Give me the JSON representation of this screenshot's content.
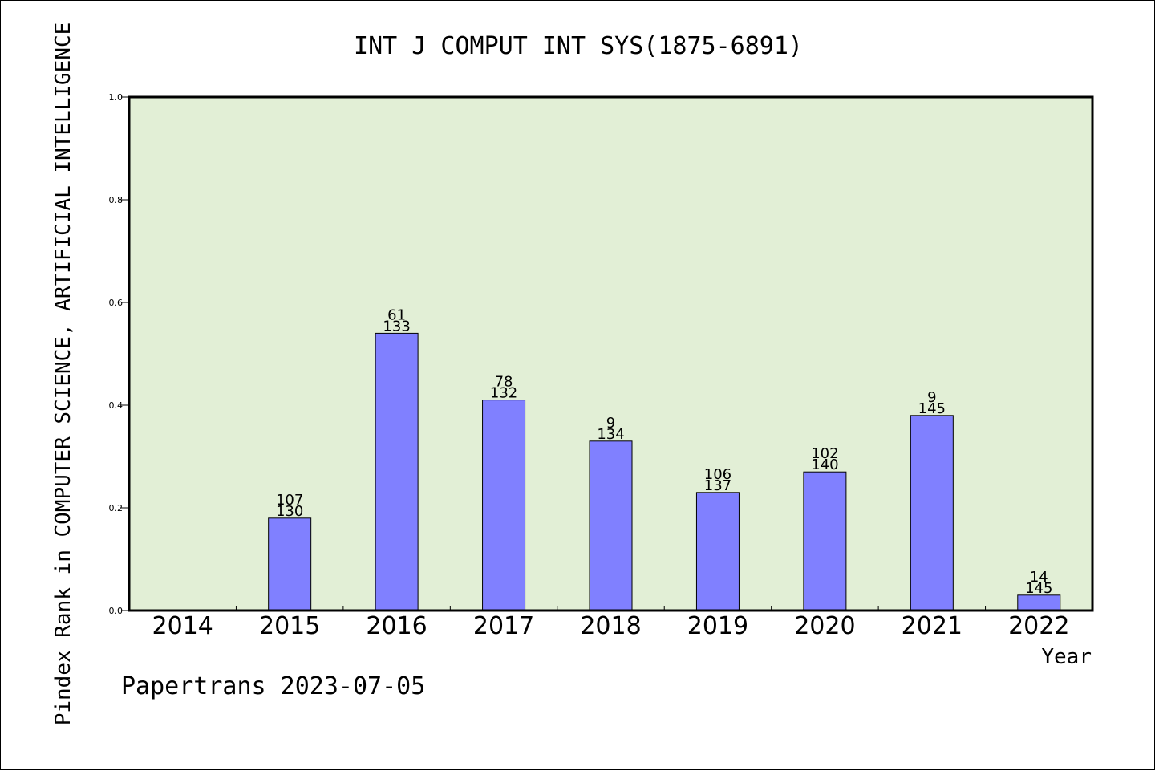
{
  "chart_data": {
    "type": "bar",
    "title": "INT J COMPUT INT SYS(1875-6891)",
    "xlabel": "Year",
    "ylabel": "Pindex Rank in COMPUTER SCIENCE, ARTIFICIAL INTELLIGENCE",
    "ylim": [
      0,
      1.0
    ],
    "yticks": [
      "0.0",
      "0.2",
      "0.4",
      "0.6",
      "0.8",
      "1.0"
    ],
    "categories": [
      "2014",
      "2015",
      "2016",
      "2017",
      "2018",
      "2019",
      "2020",
      "2021",
      "2022"
    ],
    "values": [
      null,
      0.18,
      0.54,
      0.41,
      0.33,
      0.23,
      0.27,
      0.38,
      0.03
    ],
    "labels_top": [
      "",
      "107",
      "61",
      "78",
      "9",
      "106",
      "102",
      "9",
      "14"
    ],
    "labels_bottom": [
      "",
      "130",
      "133",
      "132",
      "134",
      "137",
      "140",
      "145",
      "145"
    ],
    "grid": false,
    "footer": "Papertrans 2023-07-05",
    "colors": {
      "plot_bg": "#e2efd6",
      "bar_fill": "#8080ff",
      "bar_stroke": "#000000"
    }
  }
}
